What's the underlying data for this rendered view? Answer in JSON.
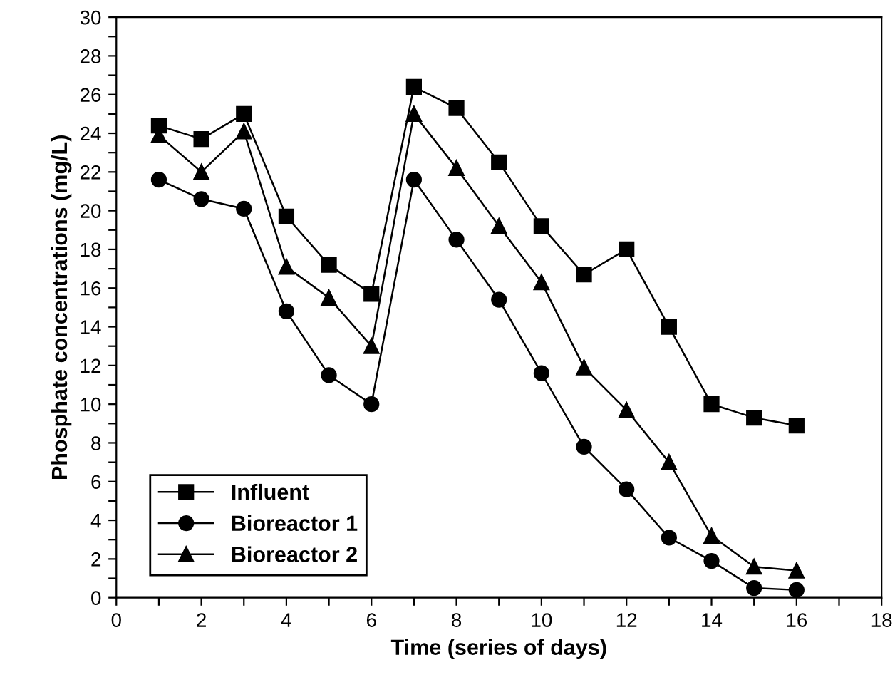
{
  "chart_data": {
    "type": "line",
    "xlabel": "Time (series of days)",
    "ylabel": "Phosphate concentrations (mg/L)",
    "x": [
      1,
      2,
      3,
      4,
      5,
      6,
      7,
      8,
      9,
      10,
      11,
      12,
      13,
      14,
      15,
      16
    ],
    "xlim": [
      0,
      18
    ],
    "xticks": [
      0,
      {
        "value": 1,
        "label": null
      },
      2,
      {
        "value": 3,
        "label": null
      },
      4,
      {
        "value": 5,
        "label": null
      },
      6,
      {
        "value": 7,
        "label": null
      },
      8,
      {
        "value": 9,
        "label": null
      },
      10,
      {
        "value": 11,
        "label": null
      },
      12,
      {
        "value": 13,
        "label": null
      },
      14,
      {
        "value": 15,
        "label": null
      },
      16,
      {
        "value": 17,
        "label": null
      },
      18
    ],
    "ylim": [
      0,
      30
    ],
    "yticks": [
      0,
      {
        "value": 1,
        "label": null
      },
      2,
      {
        "value": 3,
        "label": null
      },
      4,
      {
        "value": 5,
        "label": null
      },
      6,
      {
        "value": 7,
        "label": null
      },
      8,
      {
        "value": 9,
        "label": null
      },
      10,
      {
        "value": 11,
        "label": null
      },
      12,
      {
        "value": 13,
        "label": null
      },
      14,
      {
        "value": 15,
        "label": null
      },
      16,
      {
        "value": 17,
        "label": null
      },
      18,
      {
        "value": 19,
        "label": null
      },
      20,
      {
        "value": 21,
        "label": null
      },
      22,
      {
        "value": 23,
        "label": null
      },
      24,
      {
        "value": 25,
        "label": null
      },
      26,
      {
        "value": 27,
        "label": null
      },
      28,
      {
        "value": 29,
        "label": null
      },
      30
    ],
    "grid": false,
    "legend": "bottom left",
    "line_style": "solid",
    "series": [
      {
        "name": "Influent",
        "color": "#000000",
        "marker": "square",
        "values": [
          24.4,
          23.7,
          25.0,
          19.7,
          17.2,
          15.7,
          26.4,
          25.3,
          22.5,
          19.2,
          16.7,
          18.0,
          14.0,
          10.0,
          9.3,
          8.9
        ]
      },
      {
        "name": "Bioreactor 1",
        "color": "#000000",
        "marker": "circle",
        "values": [
          21.6,
          20.6,
          20.1,
          14.8,
          11.5,
          10.0,
          21.6,
          18.5,
          15.4,
          11.6,
          7.8,
          5.6,
          3.1,
          1.9,
          0.5,
          0.4
        ]
      },
      {
        "name": "Bioreactor 2",
        "color": "#000000",
        "marker": "triangle",
        "values": [
          23.9,
          22.0,
          24.1,
          17.1,
          15.5,
          13.0,
          25.0,
          22.2,
          19.2,
          16.3,
          11.9,
          9.7,
          7.0,
          3.2,
          1.6,
          1.4
        ]
      }
    ]
  }
}
